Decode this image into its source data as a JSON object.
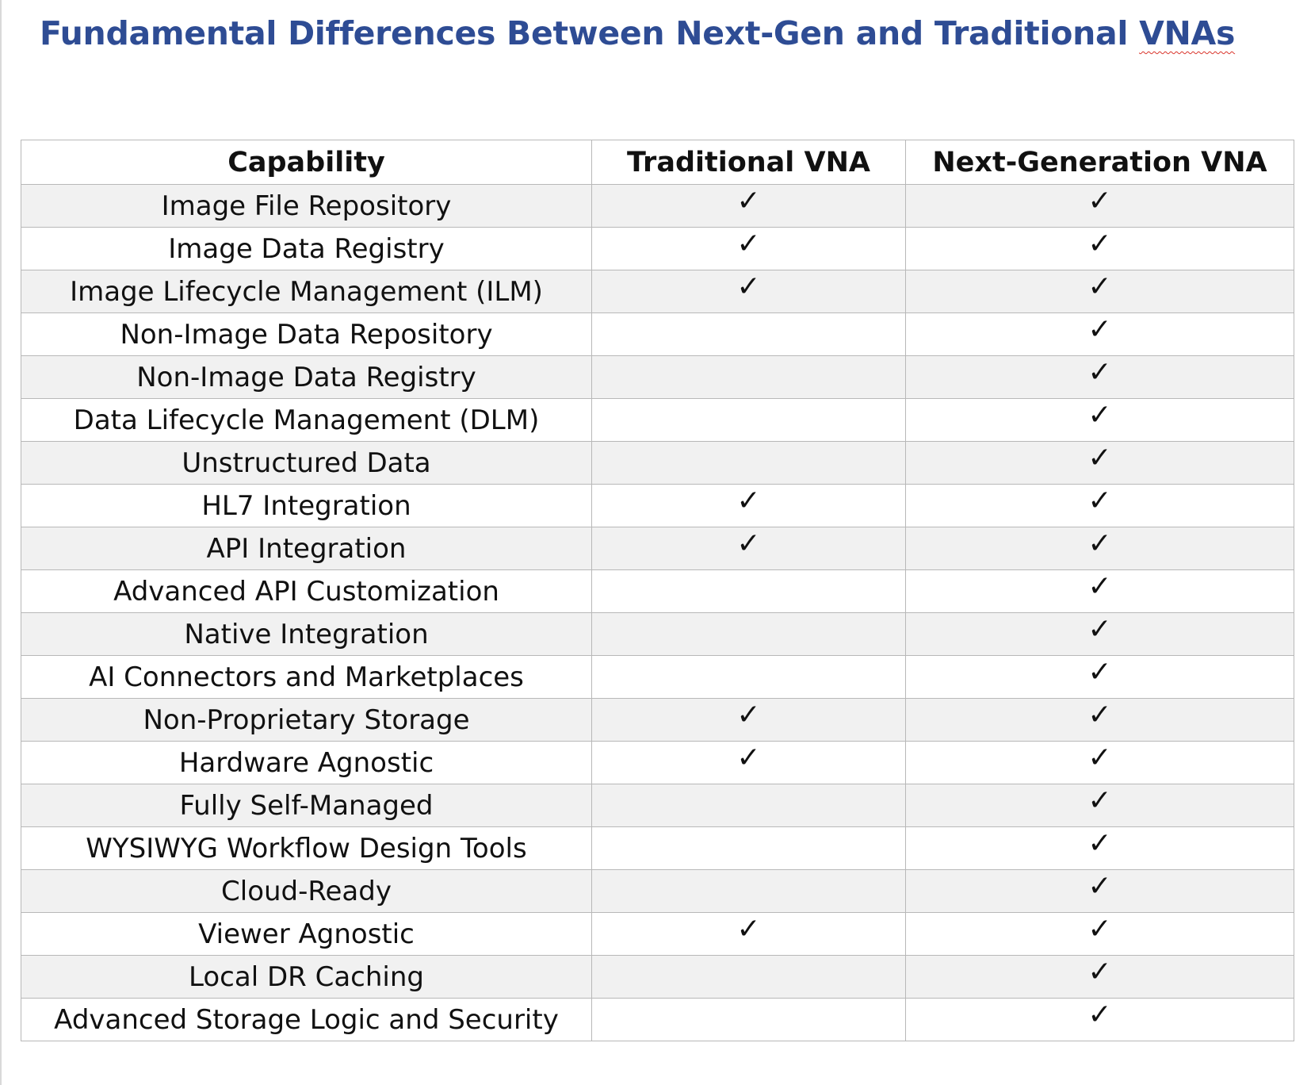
{
  "document": {
    "title_main": "Fundamental Differences Between Next-Gen and Traditional ",
    "title_last_word": "VNAs"
  },
  "table": {
    "headers": [
      "Capability",
      "Traditional VNA",
      "Next-Generation VNA"
    ],
    "check_glyph": "✓",
    "rows": [
      {
        "capability": "Image File Repository",
        "traditional": "✓",
        "next_gen": "✓"
      },
      {
        "capability": "Image Data Registry",
        "traditional": "✓",
        "next_gen": "✓"
      },
      {
        "capability": "Image Lifecycle Management (ILM)",
        "traditional": "✓",
        "next_gen": "✓"
      },
      {
        "capability": "Non-Image Data Repository",
        "traditional": "",
        "next_gen": "✓"
      },
      {
        "capability": "Non-Image Data Registry",
        "traditional": "",
        "next_gen": "✓"
      },
      {
        "capability": "Data Lifecycle Management (DLM)",
        "traditional": "",
        "next_gen": "✓"
      },
      {
        "capability": "Unstructured Data",
        "traditional": "",
        "next_gen": "✓"
      },
      {
        "capability": "HL7 Integration",
        "traditional": "✓",
        "next_gen": "✓"
      },
      {
        "capability": "API Integration",
        "traditional": "✓",
        "next_gen": "✓"
      },
      {
        "capability": "Advanced API Customization",
        "traditional": "",
        "next_gen": "✓"
      },
      {
        "capability": "Native Integration",
        "traditional": "",
        "next_gen": "✓"
      },
      {
        "capability": "AI Connectors and Marketplaces",
        "traditional": "",
        "next_gen": "✓"
      },
      {
        "capability": "Non-Proprietary Storage",
        "traditional": "✓",
        "next_gen": "✓"
      },
      {
        "capability": "Hardware Agnostic",
        "traditional": "✓",
        "next_gen": "✓"
      },
      {
        "capability": "Fully Self-Managed",
        "traditional": "",
        "next_gen": "✓"
      },
      {
        "capability": "WYSIWYG Workflow Design Tools",
        "traditional": "",
        "next_gen": "✓"
      },
      {
        "capability": "Cloud-Ready",
        "traditional": "",
        "next_gen": "✓"
      },
      {
        "capability": "Viewer Agnostic",
        "traditional": "✓",
        "next_gen": "✓"
      },
      {
        "capability": "Local DR Caching",
        "traditional": "",
        "next_gen": "✓"
      },
      {
        "capability": "Advanced Storage Logic and Security",
        "traditional": "",
        "next_gen": "✓"
      }
    ]
  },
  "colors": {
    "title": "#2e4c94",
    "row_shade": "#f1f1f1",
    "border": "#b8b8b8",
    "spellcheck_underline": "#d9342b"
  }
}
